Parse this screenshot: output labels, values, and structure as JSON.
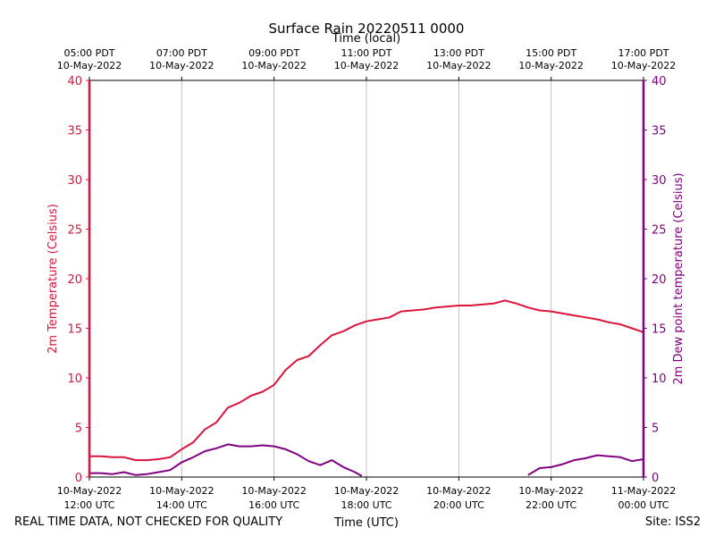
{
  "chart_data": {
    "type": "line",
    "title": "Surface Rain 20220511 0000",
    "top_axis_label": "Time (local)",
    "xlabel": "Time (UTC)",
    "ylabel_left": "2m Temperature (Celsius)",
    "ylabel_right": "2m Dew point temperature (Celsius)",
    "footer_left": "REAL TIME DATA, NOT CHECKED FOR QUALITY",
    "footer_right": "Site: ISS2",
    "x_range_hours_utc": [
      12,
      24
    ],
    "ylim_left": [
      0,
      40
    ],
    "ylim_right": [
      0,
      40
    ],
    "y_ticks": [
      0,
      5,
      10,
      15,
      20,
      25,
      30,
      35,
      40
    ],
    "grid": "vertical",
    "bottom_ticks": [
      {
        "hour": 12,
        "line1": "10-May-2022",
        "line2": "12:00 UTC"
      },
      {
        "hour": 14,
        "line1": "10-May-2022",
        "line2": "14:00 UTC"
      },
      {
        "hour": 16,
        "line1": "10-May-2022",
        "line2": "16:00 UTC"
      },
      {
        "hour": 18,
        "line1": "10-May-2022",
        "line2": "18:00 UTC"
      },
      {
        "hour": 20,
        "line1": "10-May-2022",
        "line2": "20:00 UTC"
      },
      {
        "hour": 22,
        "line1": "10-May-2022",
        "line2": "22:00 UTC"
      },
      {
        "hour": 24,
        "line1": "11-May-2022",
        "line2": "00:00 UTC"
      }
    ],
    "top_ticks": [
      {
        "hour": 12,
        "line1": "05:00 PDT",
        "line2": "10-May-2022"
      },
      {
        "hour": 14,
        "line1": "07:00 PDT",
        "line2": "10-May-2022"
      },
      {
        "hour": 16,
        "line1": "09:00 PDT",
        "line2": "10-May-2022"
      },
      {
        "hour": 18,
        "line1": "11:00 PDT",
        "line2": "10-May-2022"
      },
      {
        "hour": 20,
        "line1": "13:00 PDT",
        "line2": "10-May-2022"
      },
      {
        "hour": 22,
        "line1": "15:00 PDT",
        "line2": "10-May-2022"
      },
      {
        "hour": 24,
        "line1": "17:00 PDT",
        "line2": "10-May-2022"
      }
    ],
    "series": [
      {
        "name": "2m Temperature",
        "axis": "left",
        "color": "#dc143c",
        "x": [
          12.0,
          12.25,
          12.5,
          12.75,
          13.0,
          13.25,
          13.5,
          13.75,
          14.0,
          14.25,
          14.5,
          14.75,
          15.0,
          15.25,
          15.5,
          15.75,
          16.0,
          16.25,
          16.5,
          16.75,
          17.0,
          17.25,
          17.5,
          17.75,
          18.0,
          18.25,
          18.5,
          18.75,
          19.0,
          19.25,
          19.5,
          19.75,
          20.0,
          20.25,
          20.5,
          20.75,
          21.0,
          21.25,
          21.5,
          21.75,
          22.0,
          22.25,
          22.5,
          22.75,
          23.0,
          23.25,
          23.5,
          23.75,
          24.0
        ],
        "values": [
          2.1,
          2.1,
          2.0,
          2.0,
          1.7,
          1.7,
          1.8,
          2.0,
          2.8,
          3.5,
          4.8,
          5.5,
          7.0,
          7.5,
          8.2,
          8.6,
          9.3,
          10.8,
          11.8,
          12.2,
          13.3,
          14.3,
          14.7,
          15.3,
          15.7,
          15.9,
          16.1,
          16.7,
          16.8,
          16.9,
          17.1,
          17.2,
          17.3,
          17.3,
          17.4,
          17.5,
          17.8,
          17.5,
          17.1,
          16.8,
          16.7,
          16.5,
          16.3,
          16.1,
          15.9,
          15.6,
          15.4,
          15.0,
          14.6
        ]
      },
      {
        "name": "2m Dew point temperature",
        "axis": "right",
        "color": "#800080",
        "segments": [
          {
            "x": [
              12.0,
              12.25,
              12.5,
              12.75,
              13.0,
              13.25,
              13.5,
              13.75,
              14.0,
              14.25,
              14.5,
              14.75,
              15.0,
              15.25,
              15.5,
              15.75,
              16.0,
              16.25,
              16.5,
              16.75,
              17.0,
              17.25,
              17.5,
              17.75,
              17.9
            ],
            "values": [
              0.4,
              0.4,
              0.3,
              0.5,
              0.2,
              0.3,
              0.5,
              0.7,
              1.5,
              2.0,
              2.6,
              2.9,
              3.3,
              3.1,
              3.1,
              3.2,
              3.1,
              2.8,
              2.3,
              1.6,
              1.2,
              1.7,
              1.0,
              0.5,
              0.1
            ]
          },
          {
            "x": [
              21.5,
              21.75,
              22.0,
              22.25,
              22.5,
              22.75,
              23.0,
              23.25,
              23.5,
              23.75,
              24.0
            ],
            "values": [
              0.2,
              0.9,
              1.0,
              1.3,
              1.7,
              1.9,
              2.2,
              2.1,
              2.0,
              1.6,
              1.8
            ]
          }
        ]
      }
    ]
  }
}
